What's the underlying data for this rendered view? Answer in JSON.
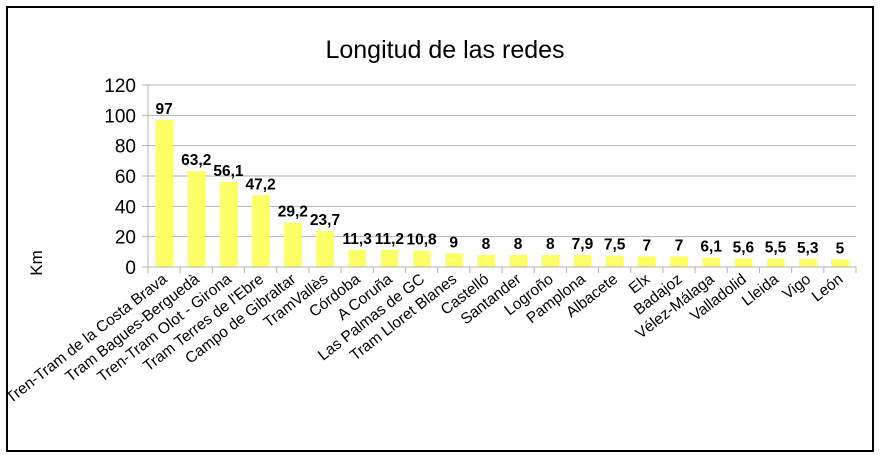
{
  "chart_data": {
    "type": "bar",
    "title": "Longitud de las redes",
    "xlabel": "",
    "ylabel": "Km",
    "ylim": [
      0,
      120
    ],
    "yticks": [
      0,
      20,
      40,
      60,
      80,
      100,
      120
    ],
    "grid": true,
    "legend": "none",
    "bar_color": "#ffff66",
    "categories": [
      "Tren-Tram de la Costa Brava",
      "Tram Bagues-Berguedà",
      "Tren-Tram Olot - Girona",
      "Tram Terres de l'Ebre",
      "Campo de Gibraltar",
      "TramVallès",
      "Córdoba",
      "A Coruña",
      "Las Palmas de GC",
      "Tram Lloret Blanes",
      "Castelló",
      "Santander",
      "Logroño",
      "Pamplona",
      "Albacete",
      "Elx",
      "Badajoz",
      "Vélez-Málaga",
      "Valladolid",
      "Lleida",
      "Vigo",
      "León"
    ],
    "values": [
      97,
      63.2,
      56.1,
      47.2,
      29.2,
      23.7,
      11.3,
      11.2,
      10.8,
      9,
      8,
      8,
      8,
      7.9,
      7.5,
      7,
      7,
      6.1,
      5.6,
      5.5,
      5.3,
      5
    ],
    "data_labels": [
      "97",
      "63,2",
      "56,1",
      "47,2",
      "29,2",
      "23,7",
      "11,3",
      "11,2",
      "10,8",
      "9",
      "8",
      "8",
      "8",
      "7,9",
      "7,5",
      "7",
      "7",
      "6,1",
      "5,6",
      "5,5",
      "5,3",
      "5"
    ]
  }
}
